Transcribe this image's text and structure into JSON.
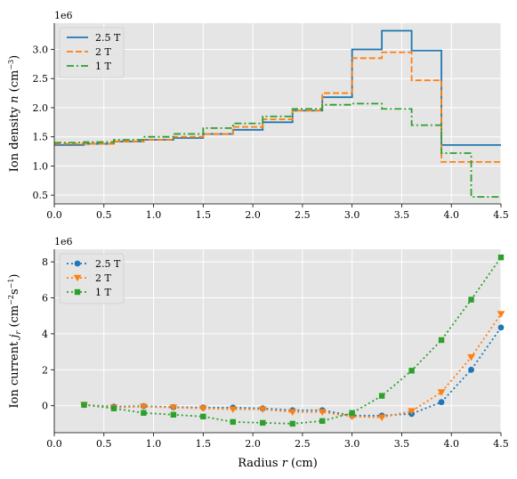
{
  "chart_data": [
    {
      "type": "line",
      "step": true,
      "ylabel": "Ion density n (cm⁻³)",
      "ylabel_parts": [
        "Ion density ",
        "n",
        " (cm",
        "−3",
        ")"
      ],
      "offset_text": "1e6",
      "xlim": [
        0.0,
        4.5
      ],
      "ylim": [
        0.35,
        3.45
      ],
      "xticks": [
        "0.0",
        "0.5",
        "1.0",
        "1.5",
        "2.0",
        "2.5",
        "3.0",
        "3.5",
        "4.0",
        "4.5"
      ],
      "yticks": [
        "0.5",
        "1.0",
        "1.5",
        "2.0",
        "2.5",
        "3.0"
      ],
      "grid": true,
      "legend_position": "top-left",
      "bin_edges": [
        0.0,
        0.3,
        0.6,
        0.9,
        1.2,
        1.5,
        1.8,
        2.1,
        2.4,
        2.7,
        3.0,
        3.3,
        3.6,
        3.9,
        4.2,
        4.5
      ],
      "series": [
        {
          "name": "2.5 T",
          "color": "#1f77b4",
          "dash": "solid",
          "values": [
            1.36,
            1.38,
            1.42,
            1.45,
            1.48,
            1.55,
            1.62,
            1.75,
            1.95,
            2.18,
            3.0,
            3.32,
            2.98,
            1.36,
            1.36
          ]
        },
        {
          "name": "2 T",
          "color": "#ff7f0e",
          "dash": "dashed",
          "values": [
            1.38,
            1.38,
            1.42,
            1.45,
            1.5,
            1.55,
            1.67,
            1.8,
            1.95,
            2.25,
            2.85,
            2.95,
            2.47,
            1.07,
            1.07
          ]
        },
        {
          "name": "1 T",
          "color": "#2ca02c",
          "dash": "dashdot",
          "values": [
            1.4,
            1.41,
            1.45,
            1.5,
            1.55,
            1.65,
            1.73,
            1.85,
            1.98,
            2.05,
            2.07,
            1.98,
            1.7,
            1.22,
            0.47
          ]
        }
      ]
    },
    {
      "type": "line",
      "ylabel": "Ion current j_r (cm⁻²s⁻¹)",
      "ylabel_parts": [
        "Ion current ",
        "j",
        "r",
        " (cm",
        "−2",
        "s",
        "−1",
        ")"
      ],
      "xlabel": "Radius r (cm)",
      "xlabel_parts": [
        "Radius ",
        "r",
        " (cm)"
      ],
      "offset_text": "1e6",
      "xlim": [
        0.0,
        4.5
      ],
      "ylim": [
        -1.5,
        8.7
      ],
      "xticks": [
        "0.0",
        "0.5",
        "1.0",
        "1.5",
        "2.0",
        "2.5",
        "3.0",
        "3.5",
        "4.0",
        "4.5"
      ],
      "yticks": [
        "0",
        "2",
        "4",
        "6",
        "8"
      ],
      "grid": true,
      "legend_position": "top-left",
      "x": [
        0.3,
        0.6,
        0.9,
        1.2,
        1.5,
        1.8,
        2.1,
        2.4,
        2.7,
        3.0,
        3.3,
        3.6,
        3.9,
        4.2,
        4.5
      ],
      "series": [
        {
          "name": "2.5 T",
          "color": "#1f77b4",
          "marker": "circle",
          "values": [
            0.05,
            -0.05,
            -0.02,
            -0.08,
            -0.1,
            -0.1,
            -0.15,
            -0.25,
            -0.25,
            -0.55,
            -0.55,
            -0.45,
            0.2,
            2.0,
            4.35
          ]
        },
        {
          "name": "2 T",
          "color": "#ff7f0e",
          "marker": "triangle-down",
          "values": [
            0.05,
            -0.1,
            -0.05,
            -0.1,
            -0.15,
            -0.2,
            -0.2,
            -0.35,
            -0.35,
            -0.6,
            -0.65,
            -0.3,
            0.75,
            2.7,
            5.1
          ]
        },
        {
          "name": "1 T",
          "color": "#2ca02c",
          "marker": "square",
          "values": [
            0.05,
            -0.15,
            -0.4,
            -0.5,
            -0.6,
            -0.9,
            -0.95,
            -1.0,
            -0.85,
            -0.4,
            0.55,
            1.95,
            3.65,
            5.9,
            8.25
          ]
        }
      ]
    }
  ]
}
